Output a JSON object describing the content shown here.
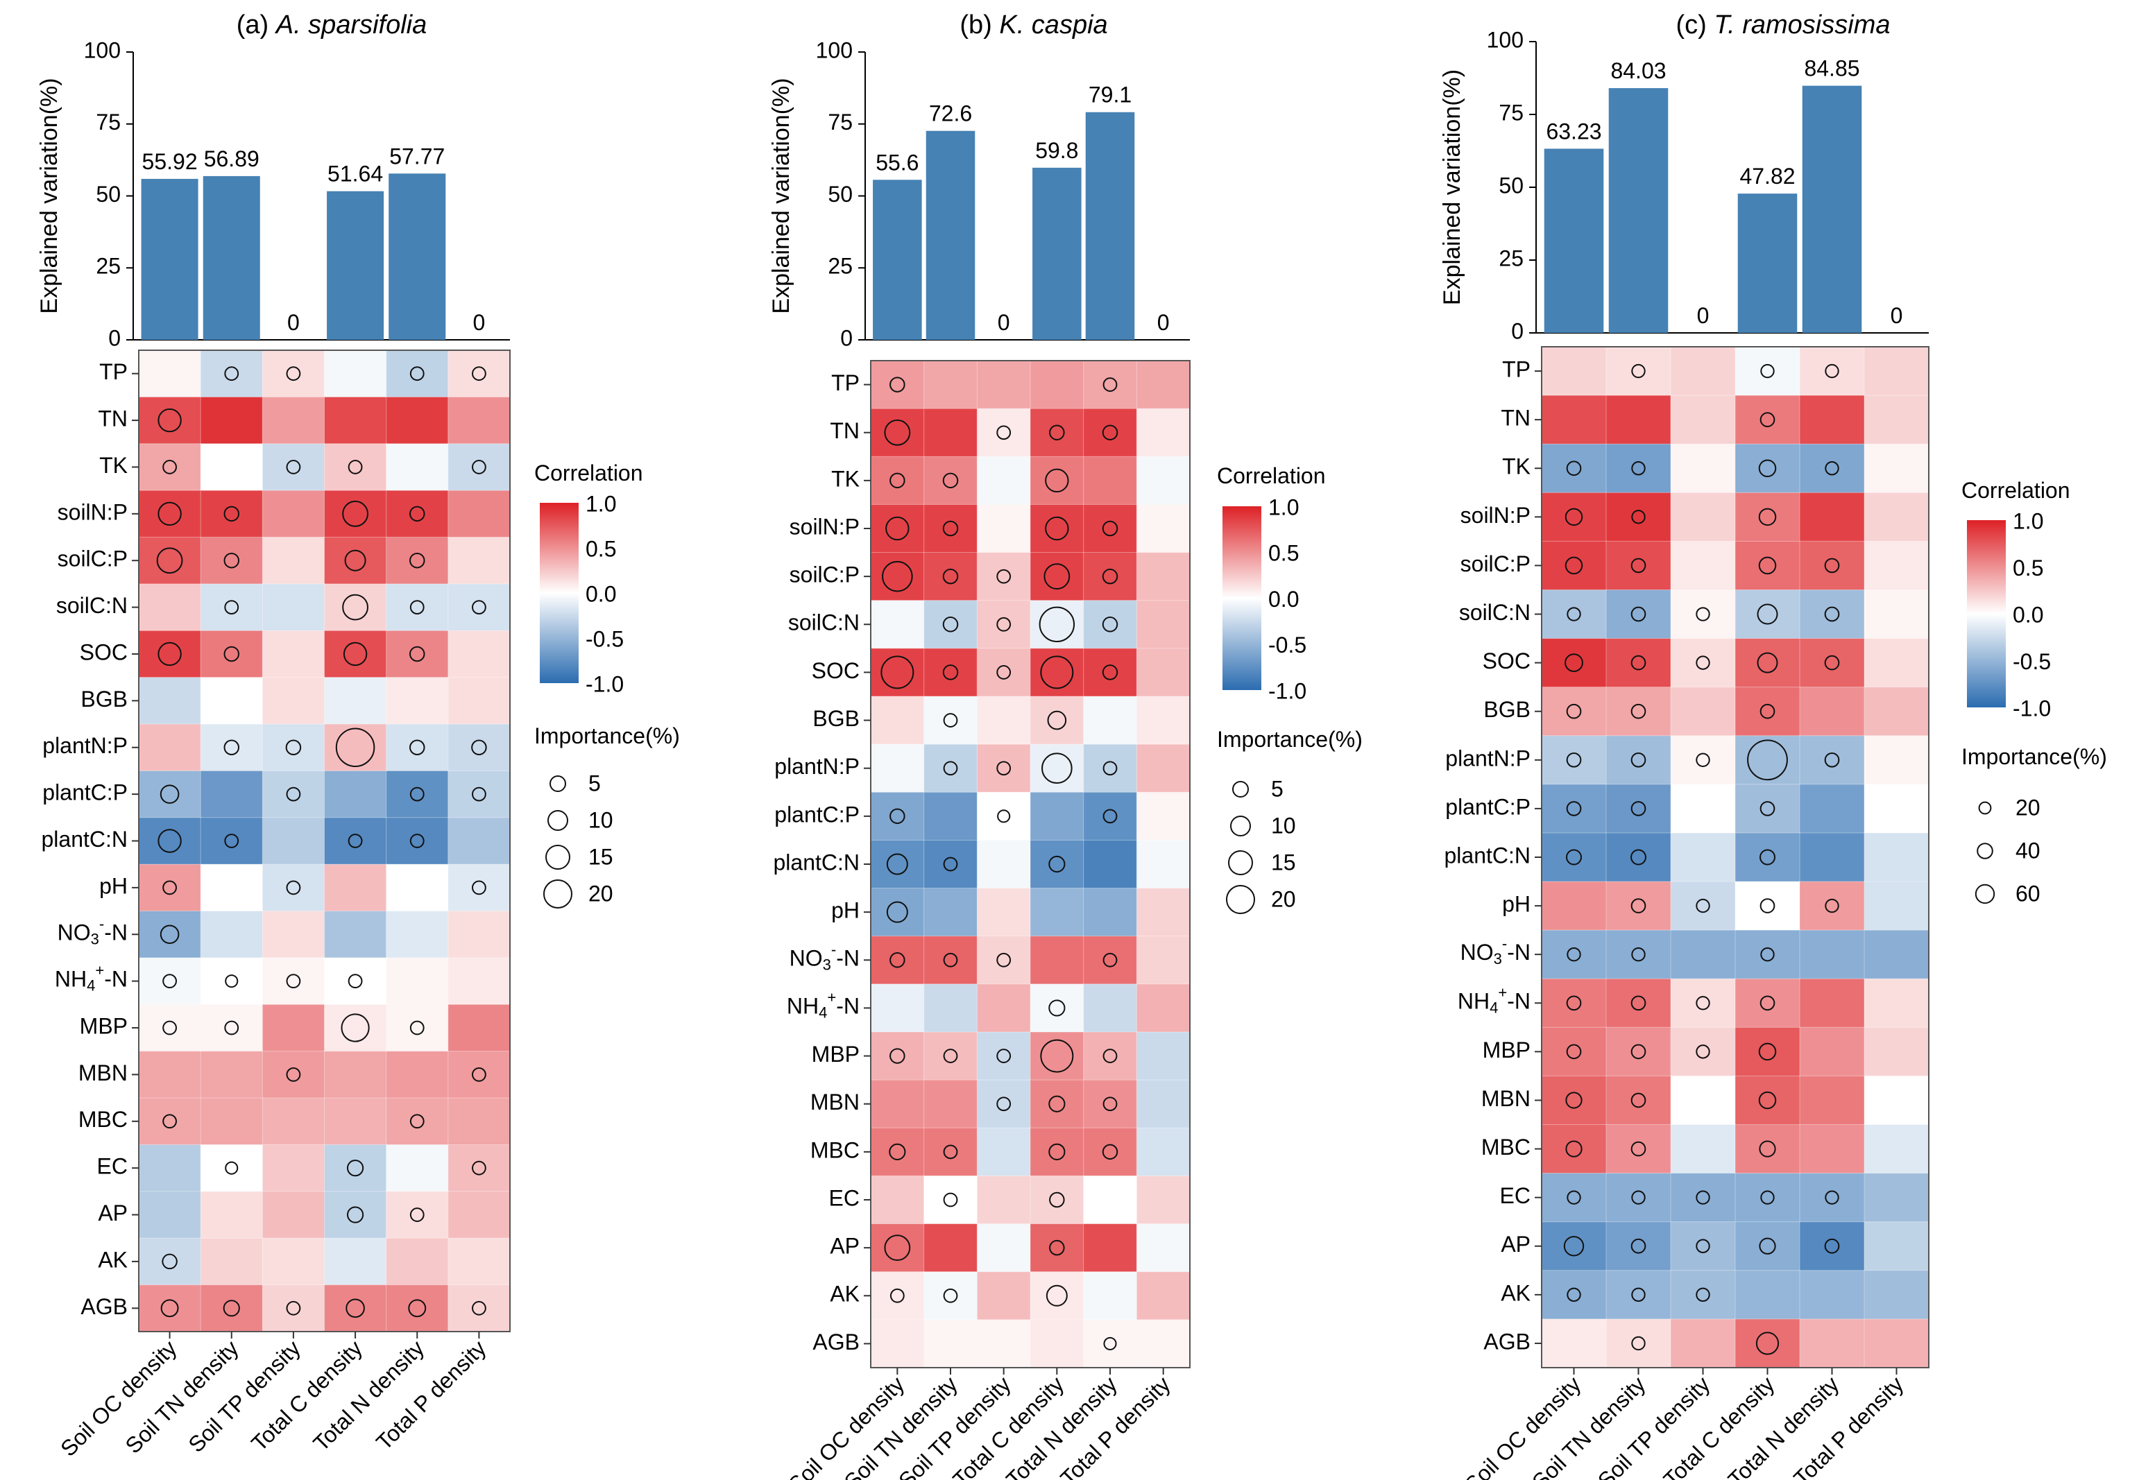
{
  "figure": {
    "legend": {
      "correlation_title": "Correlation",
      "correlation_ticks": [
        "1.0",
        "0.5",
        "0.0",
        "-0.5",
        "-1.0"
      ],
      "importance_title": "Importance(%)"
    }
  },
  "chart_data": [
    {
      "type": "bar+heatmap",
      "panel_label": "(a)",
      "title_species": "A. sparsifolia",
      "ylabel": "Explained variation(%)",
      "ylim": [
        0,
        100
      ],
      "yticks": [
        "0",
        "25",
        "50",
        "75",
        "100"
      ],
      "categories": [
        "Soil OC density",
        "Soil TN density",
        "Soil TP density",
        "Total C density",
        "Total N density",
        "Total P density"
      ],
      "bar_values": [
        55.92,
        56.89,
        0,
        51.64,
        57.77,
        0
      ],
      "bar_labels": [
        "55.92",
        "56.89",
        "0",
        "51.64",
        "57.77",
        "0"
      ],
      "bar_color": "#4682b4",
      "rows": [
        "TP",
        "TN",
        "TK",
        "soilN:P",
        "soilC:P",
        "soilC:N",
        "SOC",
        "BGB",
        "plantN:P",
        "plantC:P",
        "plantC:N",
        "pH",
        "NO3-N",
        "NH4+-N",
        "MBP",
        "MBN",
        "MBC",
        "EC",
        "AP",
        "AK",
        "AGB"
      ],
      "correlation": [
        [
          0.05,
          -0.25,
          0.15,
          -0.05,
          -0.3,
          0.15
        ],
        [
          0.8,
          0.92,
          0.45,
          0.82,
          0.88,
          0.5
        ],
        [
          0.4,
          0.0,
          -0.25,
          0.25,
          -0.05,
          -0.25
        ],
        [
          0.85,
          0.85,
          0.5,
          0.85,
          0.85,
          0.55
        ],
        [
          0.75,
          0.55,
          0.15,
          0.75,
          0.55,
          0.15
        ],
        [
          0.25,
          -0.2,
          -0.2,
          0.2,
          -0.2,
          -0.2
        ],
        [
          0.85,
          0.6,
          0.15,
          0.8,
          0.55,
          0.15
        ],
        [
          -0.25,
          0.0,
          0.15,
          -0.1,
          0.1,
          0.15
        ],
        [
          0.3,
          -0.15,
          -0.2,
          0.3,
          -0.2,
          -0.25
        ],
        [
          -0.5,
          -0.7,
          -0.3,
          -0.55,
          -0.75,
          -0.3
        ],
        [
          -0.8,
          -0.8,
          -0.35,
          -0.8,
          -0.8,
          -0.4
        ],
        [
          0.45,
          0.0,
          -0.2,
          0.3,
          0.0,
          -0.15
        ],
        [
          -0.55,
          -0.2,
          0.15,
          -0.4,
          -0.15,
          0.15
        ],
        [
          -0.05,
          0.0,
          0.05,
          0.0,
          0.05,
          0.1
        ],
        [
          0.05,
          0.05,
          0.5,
          0.1,
          0.05,
          0.55
        ],
        [
          0.4,
          0.4,
          0.45,
          0.4,
          0.45,
          0.45
        ],
        [
          0.4,
          0.4,
          0.35,
          0.35,
          0.4,
          0.4
        ],
        [
          -0.35,
          0.0,
          0.25,
          -0.3,
          -0.05,
          0.3
        ],
        [
          -0.35,
          0.15,
          0.3,
          -0.3,
          0.15,
          0.3
        ],
        [
          -0.25,
          0.2,
          0.15,
          -0.15,
          0.25,
          0.15
        ],
        [
          0.5,
          0.55,
          0.2,
          0.55,
          0.55,
          0.2
        ]
      ],
      "importance": [
        [
          0,
          4,
          4,
          0,
          4,
          4
        ],
        [
          12,
          0,
          0,
          0,
          0,
          0
        ],
        [
          4,
          0,
          4,
          4,
          0,
          4
        ],
        [
          12,
          5,
          0,
          14,
          5,
          0
        ],
        [
          14,
          5,
          0,
          10,
          5,
          0
        ],
        [
          0,
          4,
          0,
          14,
          4,
          4
        ],
        [
          12,
          5,
          0,
          12,
          5,
          0
        ],
        [
          0,
          0,
          0,
          0,
          0,
          0
        ],
        [
          0,
          5,
          5,
          25,
          5,
          5
        ],
        [
          8,
          0,
          4,
          0,
          4,
          4
        ],
        [
          12,
          4,
          0,
          4,
          4,
          0
        ],
        [
          4,
          0,
          4,
          0,
          0,
          4
        ],
        [
          8,
          0,
          0,
          0,
          0,
          0
        ],
        [
          4,
          3,
          4,
          4,
          0,
          0
        ],
        [
          4,
          4,
          0,
          16,
          4,
          0
        ],
        [
          0,
          0,
          4,
          0,
          0,
          4
        ],
        [
          4,
          0,
          0,
          0,
          4,
          0
        ],
        [
          0,
          3,
          0,
          6,
          0,
          4
        ],
        [
          0,
          0,
          0,
          6,
          4,
          0
        ],
        [
          5,
          0,
          0,
          0,
          0,
          0
        ],
        [
          7,
          6,
          4,
          8,
          7,
          4
        ]
      ],
      "legend_sizes": [
        5,
        10,
        15,
        20
      ],
      "legend_size_labels": [
        "5",
        "10",
        "15",
        "20"
      ]
    },
    {
      "type": "bar+heatmap",
      "panel_label": "(b)",
      "title_species": "K. caspia",
      "ylabel": "Explained variation(%)",
      "ylim": [
        0,
        100
      ],
      "yticks": [
        "0",
        "25",
        "50",
        "75",
        "100"
      ],
      "categories": [
        "Soil OC density",
        "Soil TN density",
        "Soil TP density",
        "Total C density",
        "Total N density",
        "Total P density"
      ],
      "bar_values": [
        55.6,
        72.6,
        0,
        59.8,
        79.1,
        0
      ],
      "bar_labels": [
        "55.6",
        "72.6",
        "0",
        "59.8",
        "79.1",
        "0"
      ],
      "bar_color": "#4682b4",
      "rows": [
        "TP",
        "TN",
        "TK",
        "soilN:P",
        "soilC:P",
        "soilC:N",
        "SOC",
        "BGB",
        "plantN:P",
        "plantC:P",
        "plantC:N",
        "pH",
        "NO3-N",
        "NH4+-N",
        "MBP",
        "MBN",
        "MBC",
        "EC",
        "AP",
        "AK",
        "AGB"
      ],
      "correlation": [
        [
          0.45,
          0.4,
          0.4,
          0.45,
          0.4,
          0.4
        ],
        [
          0.85,
          0.85,
          0.1,
          0.8,
          0.85,
          0.1
        ],
        [
          0.6,
          0.55,
          -0.05,
          0.6,
          0.6,
          -0.05
        ],
        [
          0.85,
          0.85,
          0.05,
          0.85,
          0.85,
          0.05
        ],
        [
          0.85,
          0.8,
          0.25,
          0.85,
          0.8,
          0.3
        ],
        [
          -0.05,
          -0.3,
          0.25,
          -0.1,
          -0.3,
          0.3
        ],
        [
          0.85,
          0.85,
          0.3,
          0.85,
          0.85,
          0.3
        ],
        [
          0.15,
          -0.05,
          0.1,
          0.2,
          -0.05,
          0.1
        ],
        [
          -0.05,
          -0.3,
          0.3,
          -0.1,
          -0.3,
          0.3
        ],
        [
          -0.6,
          -0.7,
          0.0,
          -0.6,
          -0.75,
          0.05
        ],
        [
          -0.75,
          -0.8,
          -0.05,
          -0.75,
          -0.85,
          -0.05
        ],
        [
          -0.6,
          -0.55,
          0.15,
          -0.5,
          -0.55,
          0.2
        ],
        [
          0.7,
          0.7,
          0.2,
          0.65,
          0.65,
          0.2
        ],
        [
          -0.1,
          -0.25,
          0.35,
          -0.05,
          -0.25,
          0.35
        ],
        [
          0.35,
          0.3,
          -0.25,
          0.5,
          0.35,
          -0.25
        ],
        [
          0.5,
          0.5,
          -0.25,
          0.55,
          0.5,
          -0.25
        ],
        [
          0.6,
          0.6,
          -0.2,
          0.6,
          0.6,
          -0.2
        ],
        [
          0.25,
          0.0,
          0.2,
          0.2,
          0.0,
          0.2
        ],
        [
          0.65,
          0.8,
          -0.05,
          0.7,
          0.8,
          -0.05
        ],
        [
          0.1,
          -0.05,
          0.3,
          0.1,
          -0.05,
          0.3
        ],
        [
          0.1,
          0.05,
          0.05,
          0.1,
          0.05,
          0.05
        ]
      ],
      "importance": [
        [
          5,
          0,
          0,
          0,
          4,
          0
        ],
        [
          14,
          0,
          4,
          5,
          5,
          0
        ],
        [
          5,
          5,
          0,
          12,
          0,
          0
        ],
        [
          12,
          5,
          0,
          12,
          5,
          0
        ],
        [
          18,
          5,
          4,
          14,
          5,
          0
        ],
        [
          0,
          5,
          4,
          22,
          5,
          0
        ],
        [
          20,
          5,
          4,
          20,
          5,
          0
        ],
        [
          0,
          4,
          0,
          8,
          0,
          0
        ],
        [
          0,
          4,
          4,
          18,
          4,
          0
        ],
        [
          5,
          0,
          3,
          0,
          4,
          0
        ],
        [
          10,
          4,
          0,
          6,
          0,
          0
        ],
        [
          10,
          0,
          0,
          0,
          0,
          0
        ],
        [
          5,
          4,
          4,
          0,
          4,
          0
        ],
        [
          0,
          0,
          0,
          6,
          0,
          0
        ],
        [
          5,
          4,
          4,
          20,
          4,
          0
        ],
        [
          0,
          0,
          4,
          6,
          4,
          0
        ],
        [
          6,
          4,
          0,
          6,
          5,
          0
        ],
        [
          0,
          4,
          0,
          5,
          0,
          0
        ],
        [
          14,
          0,
          0,
          5,
          0,
          0
        ],
        [
          4,
          4,
          0,
          10,
          0,
          0
        ],
        [
          0,
          0,
          0,
          0,
          3,
          0
        ]
      ],
      "legend_sizes": [
        5,
        10,
        15,
        20
      ],
      "legend_size_labels": [
        "5",
        "10",
        "15",
        "20"
      ]
    },
    {
      "type": "bar+heatmap",
      "panel_label": "(c)",
      "title_species": "T. ramosissima",
      "ylabel": "Explained variation(%)",
      "ylim": [
        0,
        100
      ],
      "yticks": [
        "0",
        "25",
        "50",
        "75",
        "100"
      ],
      "categories": [
        "Soil OC density",
        "Soil TN density",
        "Soil TP density",
        "Total C density",
        "Total N density",
        "Total P density"
      ],
      "bar_values": [
        63.23,
        84.03,
        0,
        47.82,
        84.85,
        0
      ],
      "bar_labels": [
        "63.23",
        "84.03",
        "0",
        "47.82",
        "84.85",
        "0"
      ],
      "bar_color": "#4682b4",
      "rows": [
        "TP",
        "TN",
        "TK",
        "soilN:P",
        "soilC:P",
        "soilC:N",
        "SOC",
        "BGB",
        "plantN:P",
        "plantC:P",
        "plantC:N",
        "pH",
        "NO3-N",
        "NH4+-N",
        "MBP",
        "MBN",
        "MBC",
        "EC",
        "AP",
        "AK",
        "AGB"
      ],
      "correlation": [
        [
          0.2,
          0.15,
          0.2,
          -0.05,
          0.15,
          0.2
        ],
        [
          0.8,
          0.85,
          0.2,
          0.6,
          0.8,
          0.2
        ],
        [
          -0.6,
          -0.65,
          0.05,
          -0.55,
          -0.6,
          0.05
        ],
        [
          0.85,
          0.9,
          0.2,
          0.6,
          0.85,
          0.2
        ],
        [
          0.85,
          0.8,
          0.1,
          0.65,
          0.7,
          0.1
        ],
        [
          -0.4,
          -0.55,
          0.05,
          -0.35,
          -0.45,
          0.05
        ],
        [
          0.9,
          0.8,
          0.15,
          0.7,
          0.7,
          0.15
        ],
        [
          0.4,
          0.4,
          0.25,
          0.65,
          0.5,
          0.3
        ],
        [
          -0.35,
          -0.45,
          0.05,
          -0.45,
          -0.45,
          0.05
        ],
        [
          -0.65,
          -0.7,
          0.0,
          -0.45,
          -0.65,
          0.0
        ],
        [
          -0.75,
          -0.8,
          -0.2,
          -0.65,
          -0.75,
          -0.2
        ],
        [
          0.5,
          0.45,
          -0.25,
          0.0,
          0.45,
          -0.2
        ],
        [
          -0.55,
          -0.55,
          -0.55,
          -0.55,
          -0.55,
          -0.55
        ],
        [
          0.6,
          0.65,
          0.15,
          0.5,
          0.65,
          0.15
        ],
        [
          0.6,
          0.5,
          0.2,
          0.75,
          0.5,
          0.2
        ],
        [
          0.7,
          0.6,
          0.0,
          0.7,
          0.6,
          0.0
        ],
        [
          0.7,
          0.5,
          -0.15,
          0.55,
          0.5,
          -0.15
        ],
        [
          -0.55,
          -0.55,
          -0.55,
          -0.55,
          -0.55,
          -0.45
        ],
        [
          -0.75,
          -0.65,
          -0.45,
          -0.55,
          -0.8,
          -0.3
        ],
        [
          -0.55,
          -0.5,
          -0.45,
          -0.5,
          -0.5,
          -0.45
        ],
        [
          0.1,
          0.15,
          0.35,
          0.65,
          0.35,
          0.35
        ]
      ],
      "importance": [
        [
          0,
          10,
          0,
          10,
          10,
          0
        ],
        [
          0,
          0,
          0,
          12,
          0,
          0
        ],
        [
          12,
          10,
          0,
          18,
          10,
          0
        ],
        [
          18,
          10,
          0,
          18,
          0,
          0
        ],
        [
          18,
          12,
          0,
          18,
          12,
          0
        ],
        [
          10,
          12,
          10,
          25,
          12,
          0
        ],
        [
          20,
          12,
          10,
          25,
          12,
          0
        ],
        [
          12,
          12,
          0,
          12,
          0,
          0
        ],
        [
          12,
          12,
          10,
          70,
          12,
          0
        ],
        [
          12,
          12,
          0,
          12,
          0,
          0
        ],
        [
          14,
          14,
          0,
          14,
          0,
          0
        ],
        [
          0,
          12,
          10,
          12,
          10,
          0
        ],
        [
          10,
          10,
          0,
          10,
          0,
          0
        ],
        [
          12,
          12,
          10,
          12,
          0,
          0
        ],
        [
          12,
          12,
          10,
          18,
          0,
          0
        ],
        [
          16,
          12,
          0,
          18,
          0,
          0
        ],
        [
          16,
          12,
          0,
          16,
          0,
          0
        ],
        [
          10,
          10,
          10,
          10,
          10,
          0
        ],
        [
          24,
          12,
          10,
          16,
          12,
          0
        ],
        [
          10,
          10,
          10,
          0,
          0,
          0
        ],
        [
          0,
          10,
          0,
          30,
          0,
          0
        ]
      ],
      "legend_sizes": [
        20,
        40,
        60
      ],
      "legend_size_labels": [
        "20",
        "40",
        "60"
      ]
    }
  ]
}
